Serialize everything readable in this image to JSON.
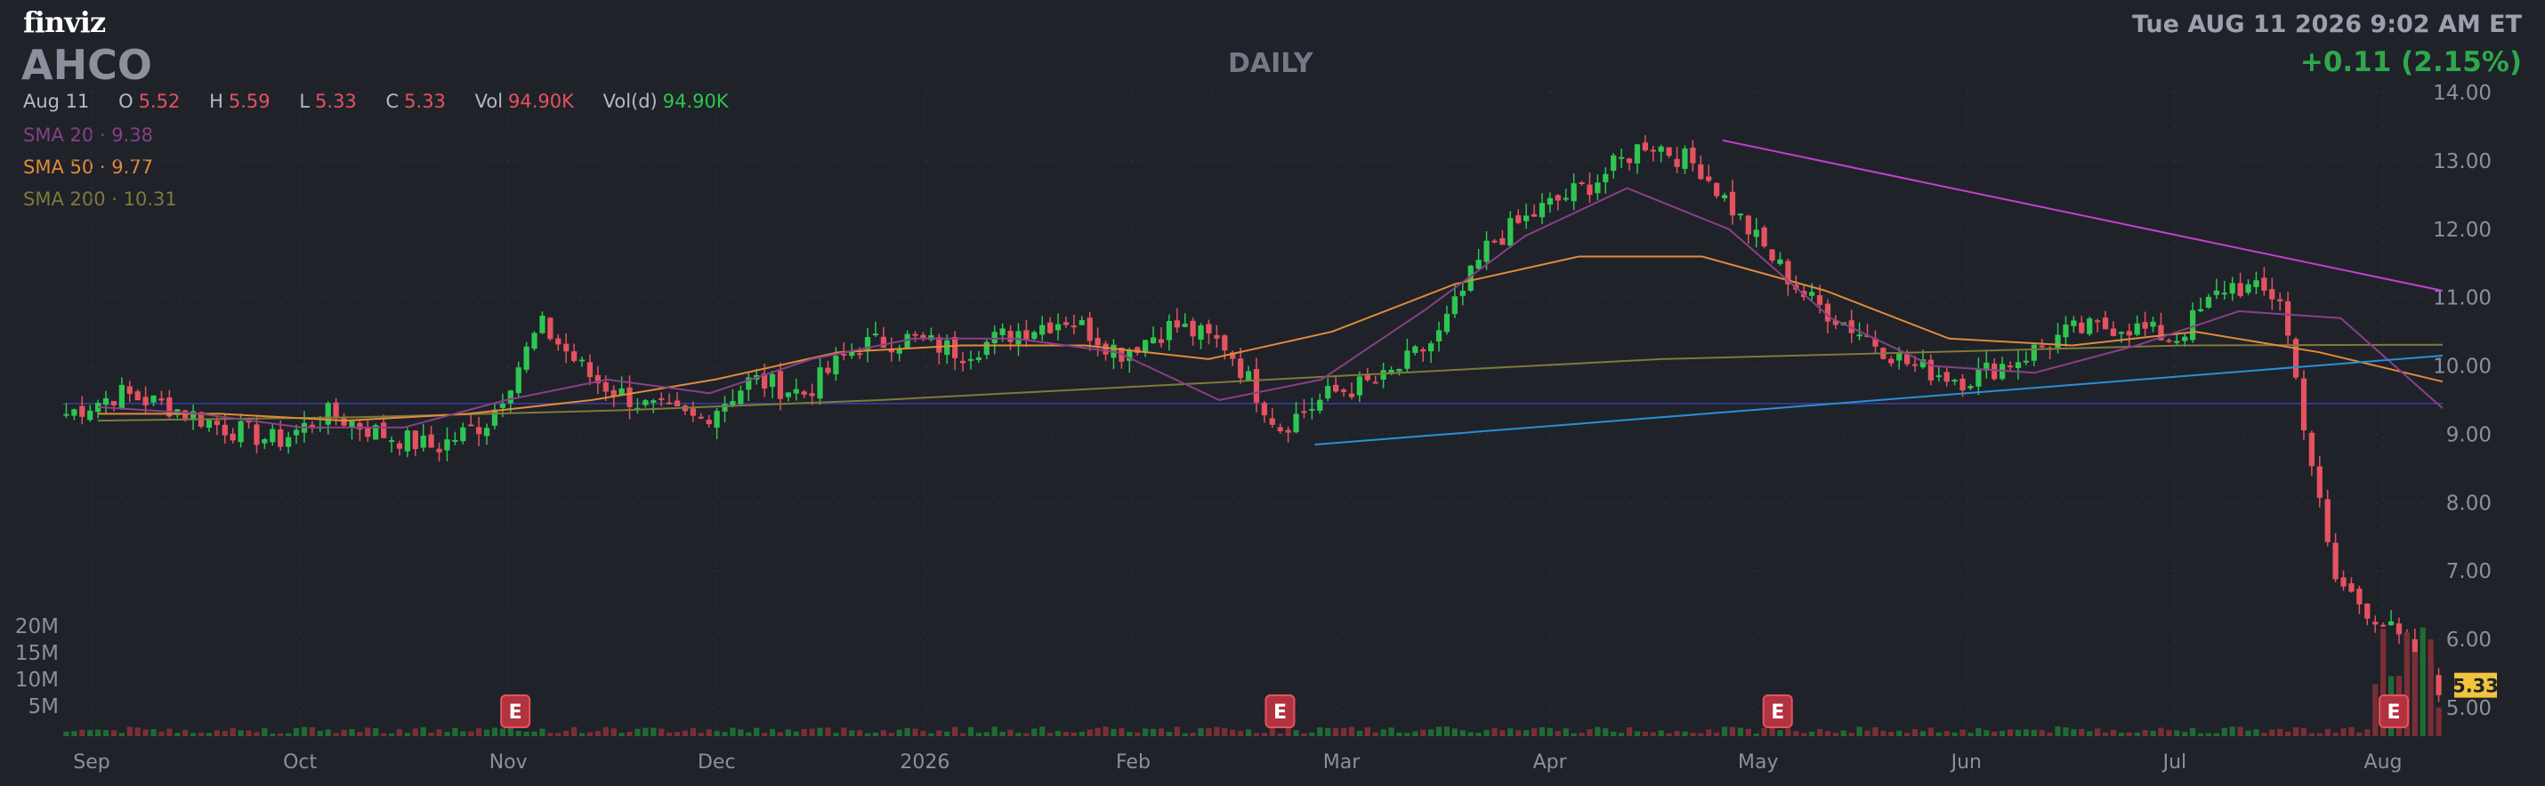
{
  "header": {
    "logo": "finviz",
    "ticker": "AHCO",
    "timeframe": "DAILY",
    "datetime": "Tue AUG 11 2026 9:02 AM ET",
    "change": "+0.11 (2.15%)"
  },
  "ohlc": {
    "date": "Aug 11",
    "o_label": "O",
    "o": "5.52",
    "h_label": "H",
    "h": "5.59",
    "l_label": "L",
    "l": "5.33",
    "c_label": "C",
    "c": "5.33",
    "vol_label": "Vol",
    "vol": "94.90K",
    "vold_label": "Vol(d)",
    "vold": "94.90K"
  },
  "indicators": {
    "sma20": {
      "label": "SMA 20",
      "sep": "·",
      "value": "9.38",
      "color": "#8a3f86"
    },
    "sma50": {
      "label": "SMA 50",
      "sep": "·",
      "value": "9.77",
      "color": "#e08b3a"
    },
    "sma200": {
      "label": "SMA 200",
      "sep": "·",
      "value": "10.31",
      "color": "#7f7a3c"
    }
  },
  "colors": {
    "background": "#1f2229",
    "up": "#2ec552",
    "down": "#e5525f",
    "price_tag": "#f0c43c",
    "resistance": "#c53fd0",
    "support": "#2a8fd6",
    "base_line": "#3a3fa8"
  },
  "chart_data": {
    "type": "candlestick",
    "title": "",
    "ylim": [
      4.6,
      14.0
    ],
    "y_ticks": [
      "14.00",
      "13.00",
      "12.00",
      "11.00",
      "10.00",
      "9.00",
      "8.00",
      "7.00",
      "6.00",
      "5.00"
    ],
    "x_ticks": [
      "Sep",
      "Oct",
      "Nov",
      "Dec",
      "2026",
      "Feb",
      "Mar",
      "Apr",
      "May",
      "Jun",
      "Jul",
      "Aug"
    ],
    "volume_ticks": [
      "20M",
      "15M",
      "10M",
      "5M"
    ],
    "last_price": "5.33",
    "earnings_marker": "E",
    "earnings_months": [
      "Nov",
      "Feb",
      "May",
      "Aug"
    ],
    "price_path": [
      [
        "Sep",
        9.3
      ],
      [
        "Sep",
        9.6
      ],
      [
        "Sep",
        9.4
      ],
      [
        "Oct",
        9.1
      ],
      [
        "Oct",
        8.9
      ],
      [
        "Oct",
        9.3
      ],
      [
        "Oct",
        9.0
      ],
      [
        "Oct",
        8.8
      ],
      [
        "Nov",
        9.2
      ],
      [
        "Nov",
        10.6
      ],
      [
        "Nov",
        9.8
      ],
      [
        "Nov",
        9.4
      ],
      [
        "Dec",
        9.2
      ],
      [
        "Dec",
        9.8
      ],
      [
        "Dec",
        9.6
      ],
      [
        "Dec",
        10.3
      ],
      [
        "Dec",
        10.4
      ],
      [
        "2026",
        10.2
      ],
      [
        "2026",
        10.5
      ],
      [
        "2026",
        10.7
      ],
      [
        "Feb",
        10.2
      ],
      [
        "Feb",
        10.6
      ],
      [
        "Feb",
        10.3
      ],
      [
        "Mar",
        9.1
      ],
      [
        "Mar",
        9.6
      ],
      [
        "Mar",
        9.8
      ],
      [
        "Apr",
        10.4
      ],
      [
        "Apr",
        11.8
      ],
      [
        "Apr",
        12.3
      ],
      [
        "Apr",
        12.7
      ],
      [
        "May",
        13.3
      ],
      [
        "May",
        12.9
      ],
      [
        "May",
        11.9
      ],
      [
        "May",
        11.0
      ],
      [
        "Jun",
        10.5
      ],
      [
        "Jun",
        10.0
      ],
      [
        "Jun",
        9.8
      ],
      [
        "Jun",
        10.1
      ],
      [
        "Jul",
        10.5
      ],
      [
        "Jul",
        10.6
      ],
      [
        "Jul",
        10.4
      ],
      [
        "Jul",
        11.2
      ],
      [
        "Aug",
        11.0
      ],
      [
        "Aug",
        6.9
      ],
      [
        "Aug",
        6.2
      ],
      [
        "Aug",
        5.33
      ]
    ],
    "sma20_path": [
      9.4,
      9.3,
      9.1,
      9.1,
      9.5,
      9.8,
      9.6,
      10.1,
      10.4,
      10.4,
      10.2,
      9.5,
      9.8,
      10.8,
      11.9,
      12.6,
      12.0,
      10.7,
      10.0,
      9.9,
      10.3,
      10.8,
      10.7,
      9.38
    ],
    "sma50_path": [
      9.3,
      9.3,
      9.2,
      9.3,
      9.5,
      9.8,
      10.2,
      10.3,
      10.3,
      10.1,
      10.5,
      11.2,
      11.6,
      11.6,
      11.1,
      10.4,
      10.3,
      10.5,
      10.2,
      9.77
    ],
    "sma200_path": [
      9.2,
      9.25,
      9.35,
      9.5,
      9.7,
      9.9,
      10.1,
      10.2,
      10.3,
      10.31
    ],
    "trendlines": [
      {
        "name": "resistance",
        "from": [
          13.3
        ],
        "to": [
          11.1
        ]
      },
      {
        "name": "support",
        "from": [
          8.85
        ],
        "to": [
          10.15
        ]
      }
    ]
  }
}
